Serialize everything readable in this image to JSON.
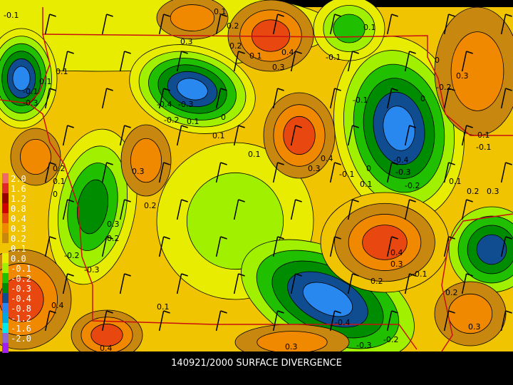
{
  "title": "140921/2000 SURFACE DIVERGENCE",
  "legend": [
    {
      "label": "2.0",
      "color": "#f06868"
    },
    {
      "label": "1.6",
      "color": "#e02828"
    },
    {
      "label": "1.2",
      "color": "#980000"
    },
    {
      "label": "0.8",
      "color": "#d00000"
    },
    {
      "label": "0.4",
      "color": "#e84810"
    },
    {
      "label": "0.3",
      "color": "#f08800"
    },
    {
      "label": "0.2",
      "color": "#c88810"
    },
    {
      "label": "0.1",
      "color": "#f0c400"
    },
    {
      "label": "0.0",
      "color": "#e8ec00"
    },
    {
      "label": "-0.1",
      "color": "#a0f000"
    },
    {
      "label": "-0.2",
      "color": "#20c000"
    },
    {
      "label": "-0.3",
      "color": "#008c00"
    },
    {
      "label": "-0.4",
      "color": "#104c90"
    },
    {
      "label": "-0.8",
      "color": "#2888f0"
    },
    {
      "label": "-1.2",
      "color": "#00a8e0"
    },
    {
      "label": "-1.6",
      "color": "#00e8e8"
    },
    {
      "label": "-2.0",
      "color": "#9068d0"
    },
    {
      "label": "",
      "color": "#a020f0"
    }
  ],
  "contour_labels": [
    "-0.1",
    "0.1",
    "0.2",
    "0.1",
    "0.3",
    "0.4",
    "0.3",
    "0.2",
    "0.1",
    "-0.1",
    "-0.1",
    "-0.3",
    "0.1",
    "-0.4",
    "-0.3",
    "-0.2",
    "0.1",
    "0",
    "0.1",
    "0.2",
    "0.1",
    "0",
    "0.3",
    "0.2",
    "0.1",
    "0",
    "-0.2",
    "-0.1",
    "0",
    "0.4",
    "0.3",
    "0.1",
    "-0.1",
    "-0.4",
    "-0.3",
    "0",
    "0.1",
    "-0.2",
    "0.2",
    "0.3",
    "0.1",
    "0.3",
    "-0.1",
    "0.1",
    "0.2",
    "0.3",
    "-0.2",
    "-0.3",
    "0.4",
    "0.3",
    "0.2",
    "-0.4",
    "-0.3",
    "-0.2",
    "0.1",
    "0.2",
    "0.3",
    "0.4",
    "0.3",
    "-0.1",
    "0.4"
  ]
}
